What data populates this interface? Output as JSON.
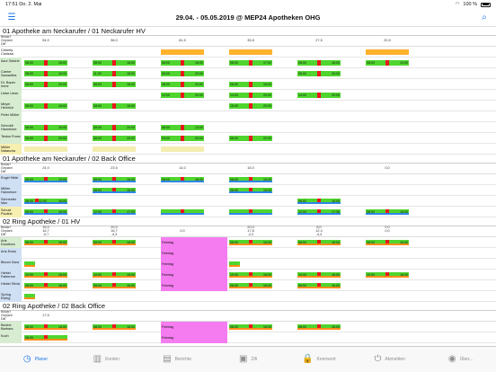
{
  "status_bar": {
    "time": "17:51",
    "date": "Do. 2. Mai",
    "battery": "100 %"
  },
  "header": {
    "title": "29.04. - 05.05.2019 @ MEP24  Apotheken OHG"
  },
  "summary_labels": [
    "Bedarf",
    "Geplant",
    "Diff"
  ],
  "tabs": [
    {
      "label": "Planer",
      "icon": "clock-icon",
      "active": true
    },
    {
      "label": "Konten",
      "icon": "chart-icon",
      "active": false
    },
    {
      "label": "Berichte",
      "icon": "reports-icon",
      "active": false
    },
    {
      "label": "Zifi",
      "icon": "briefcase-icon",
      "active": false
    },
    {
      "label": "Kennwort",
      "icon": "lock-icon",
      "active": false
    },
    {
      "label": "Abmelden",
      "icon": "power-icon",
      "active": false
    },
    {
      "label": "Über...",
      "icon": "info-icon",
      "active": false
    }
  ],
  "sections": [
    {
      "title": "01 Apotheke am Neckarufer / 01 Neckarufer HV",
      "totals": {
        "bedarf": [],
        "geplant": [
          "54,0",
          "58,0",
          "81,5",
          "35,8",
          "27,5",
          "20,5"
        ],
        "diff": []
      },
      "rows": [
        {
          "name": "Ceberty Clarissa",
          "color": "w",
          "bars": [
            {
              "day": 2,
              "type": "o"
            },
            {
              "day": 3,
              "type": "o"
            },
            {
              "day": 5,
              "type": "o"
            }
          ]
        },
        {
          "name": "Azur Sabine",
          "color": "g",
          "bars": [
            {
              "day": 0,
              "s": "08:00",
              "e": "16:00"
            },
            {
              "day": 1,
              "s": "08:00",
              "e": "16:00"
            },
            {
              "day": 2,
              "s": "08:00",
              "e": "16:00"
            },
            {
              "day": 3,
              "s": "08:00",
              "e": "17:00"
            },
            {
              "day": 4,
              "s": "08:00",
              "e": "16:00"
            },
            {
              "day": 5,
              "s": "08:00",
              "e": "13:00"
            }
          ]
        },
        {
          "name": "Carrier Samantha",
          "color": "g",
          "bars": [
            {
              "day": 0,
              "s": "08:00",
              "e": "16:00"
            },
            {
              "day": 1,
              "s": "11:00",
              "e": "18:00"
            },
            {
              "day": 2,
              "s": "08:00",
              "e": "20:00"
            },
            {
              "day": 4,
              "s": "08:00",
              "e": "20:00"
            }
          ]
        },
        {
          "name": "Dr. Bauer Irene",
          "color": "g",
          "bars": [
            {
              "day": 0,
              "s": "08:00",
              "e": "20:00"
            },
            {
              "day": 1,
              "s": "08:00",
              "e": "16:00"
            },
            {
              "day": 2,
              "s": "08:00",
              "e": "20:00"
            },
            {
              "day": 3,
              "s": "08:00",
              "e": "16:00"
            }
          ]
        },
        {
          "name": "Liebe Liese",
          "color": "g",
          "bars": [
            {
              "day": 2,
              "s": "12:00",
              "e": "20:00"
            },
            {
              "day": 3,
              "s": "14:00",
              "e": "20:00"
            },
            {
              "day": 4,
              "s": "14:00",
              "e": "20:00"
            }
          ]
        },
        {
          "name": "Meyer Heinrich",
          "color": "g",
          "bars": [
            {
              "day": 0,
              "s": "08:00",
              "e": "16:00"
            },
            {
              "day": 1,
              "s": "08:00",
              "e": "16:00"
            },
            {
              "day": 3,
              "s": "15:00",
              "e": "20:00"
            }
          ]
        },
        {
          "name": "Peter Müller",
          "color": "g",
          "bars": []
        },
        {
          "name": "Schmidt Hannelore",
          "color": "g",
          "bars": [
            {
              "day": 0,
              "s": "08:00",
              "e": "20:00"
            },
            {
              "day": 1,
              "s": "08:00",
              "e": "20:00"
            },
            {
              "day": 2,
              "s": "08:00",
              "e": "13:00"
            }
          ]
        },
        {
          "name": "Testus Franz",
          "color": "g",
          "bars": [
            {
              "day": 0,
              "s": "08:00",
              "e": "20:00"
            },
            {
              "day": 1,
              "s": "08:00",
              "e": "20:00"
            },
            {
              "day": 2,
              "s": "09:00",
              "e": "20:00"
            },
            {
              "day": 3,
              "s": "08:00",
              "e": "20:00"
            }
          ]
        },
        {
          "name": "Müller Natascha",
          "color": "y",
          "bars": [
            {
              "day": 0,
              "type": "ly"
            },
            {
              "day": 1,
              "type": "ly"
            },
            {
              "day": 2,
              "type": "ly"
            }
          ]
        }
      ]
    },
    {
      "title": "01 Apotheke am Neckarufer / 02 Back Office",
      "totals": {
        "geplant": [
          "24,0",
          "23,5",
          "14,0",
          "16,0",
          "",
          "0,0"
        ]
      },
      "rows": [
        {
          "name": "Engel Hilde",
          "color": "b",
          "bars": [
            {
              "day": 0,
              "s": "08:00",
              "e": "13:00",
              "ul": true
            },
            {
              "day": 1,
              "s": "08:00",
              "e": "16:00",
              "ul": true
            },
            {
              "day": 2,
              "s": "08:00",
              "e": "16:00",
              "ul": true
            },
            {
              "day": 3,
              "s": "08:00",
              "e": "16:00",
              "ul": true
            }
          ]
        },
        {
          "name": "Müller Hannelore",
          "color": "b",
          "bars": [
            {
              "day": 1,
              "s": "08:00",
              "e": "16:00",
              "ul": true
            },
            {
              "day": 3,
              "s": "08:00",
              "e": "16:00",
              "ul": true
            }
          ]
        },
        {
          "name": "Schneider Max",
          "color": "b",
          "bars": [
            {
              "day": 0,
              "s": "12:00",
              "e": "16:00",
              "ul": true
            },
            {
              "day": 0,
              "s": "08:00",
              "e": "12:00",
              "ul": true,
              "half": true
            },
            {
              "day": 4,
              "s": "08:00",
              "e": "16:00",
              "ul": true
            }
          ]
        },
        {
          "name": "Schulz Pauline",
          "color": "y",
          "bars": [
            {
              "day": 0,
              "s": "08:00",
              "e": "16:00",
              "ul": true
            },
            {
              "day": 1,
              "s": "12:00",
              "e": "17:00",
              "ul": true
            },
            {
              "day": 2,
              "s": "",
              "e": "",
              "ul": true
            },
            {
              "day": 3,
              "s": "",
              "e": "",
              "ul": true
            },
            {
              "day": 4,
              "s": "12:00",
              "e": "17:30",
              "ul": true
            },
            {
              "day": 5,
              "s": "08:00",
              "e": "16:00",
              "ul": true
            }
          ]
        }
      ]
    },
    {
      "title": "02 Ring Apotheke / 01 HV",
      "totals": {
        "bedarf": [
          "16,0",
          "20,0",
          "",
          "20,0",
          "8,0",
          "0,0"
        ],
        "geplant": [
          "16,7",
          "16,7",
          "0,0",
          "17,8",
          "12,4",
          "0,0"
        ],
        "diff": [
          "-0,7",
          "-4,3",
          "",
          "-2,2",
          "-4,4",
          ""
        ]
      },
      "rows": [
        {
          "name": "Aris Dorothea",
          "color": "g",
          "bars": [
            {
              "day": 0,
              "s": "08:00",
              "e": "16:00",
              "ulo": true
            },
            {
              "day": 1,
              "s": "08:00",
              "e": "16:00",
              "ulo": true
            },
            {
              "day": 3,
              "s": "08:00",
              "e": "16:00",
              "ulo": true
            },
            {
              "day": 4,
              "s": "08:00",
              "e": "16:00",
              "ulo": true
            },
            {
              "day": 5,
              "s": "08:00",
              "e": "16:00",
              "ulo": true
            }
          ]
        },
        {
          "name": "Aris Erwin",
          "color": "b",
          "bars": []
        },
        {
          "name": "Bloom Dara",
          "color": "b",
          "bars": [
            {
              "day": 0,
              "short": true,
              "ulo": true
            },
            {
              "day": 3,
              "short": true,
              "ulo": true
            }
          ]
        },
        {
          "name": "Hiebel Fabienne",
          "color": "b",
          "bars": [
            {
              "day": 0,
              "s": "10:00",
              "e": "18:00",
              "ulo": true
            },
            {
              "day": 1,
              "s": "10:00",
              "e": "18:00",
              "ulo": true
            },
            {
              "day": 3,
              "s": "10:00",
              "e": "18:00",
              "ulo": true
            },
            {
              "day": 4,
              "s": "10:00",
              "e": "18:00",
              "ulo": true
            },
            {
              "day": 5,
              "s": "10:00",
              "e": "18:00",
              "ulo": true
            }
          ]
        },
        {
          "name": "Hiebel Silvia",
          "color": "b",
          "bars": [
            {
              "day": 0,
              "s": "08:00",
              "e": "16:00",
              "ulo": true
            },
            {
              "day": 1,
              "s": "08:00",
              "e": "16:00",
              "ulo": true
            },
            {
              "day": 3,
              "s": "08:00",
              "e": "16:00",
              "ulo": true
            },
            {
              "day": 4,
              "s": "08:00",
              "e": "16:00",
              "ulo": true
            }
          ]
        },
        {
          "name": "Spring Ewing",
          "color": "b",
          "bars": [
            {
              "day": 0,
              "short": true,
              "ulo": true
            }
          ]
        }
      ],
      "holiday": {
        "day": 2,
        "labels": [
          "Feiertag",
          "Feiertag",
          "Feiertag",
          "Feiertag",
          "Feiertag"
        ]
      }
    },
    {
      "title": "02 Ring Apotheke / 02 Back Office",
      "totals": {
        "geplant": [
          "17,5",
          "",
          "",
          "",
          "",
          ""
        ]
      },
      "rows": [
        {
          "name": "Becker Barbara",
          "color": "g",
          "bars": [
            {
              "day": 0,
              "s": "08:00",
              "e": "16:00",
              "ulo": true
            },
            {
              "day": 1,
              "s": "08:00",
              "e": "16:00",
              "ulo": true
            },
            {
              "day": 3,
              "s": "08:00",
              "e": "16:00",
              "ulo": true
            },
            {
              "day": 4,
              "s": "08:00",
              "e": "16:00",
              "ulo": true
            }
          ]
        },
        {
          "name": "Koch",
          "color": "g",
          "bars": [
            {
              "day": 0,
              "s": "08:00",
              "e": "",
              "ulo": true
            }
          ]
        }
      ],
      "holiday": {
        "day": 2,
        "labels": [
          "Feiertag",
          "Feiertag"
        ]
      }
    }
  ]
}
